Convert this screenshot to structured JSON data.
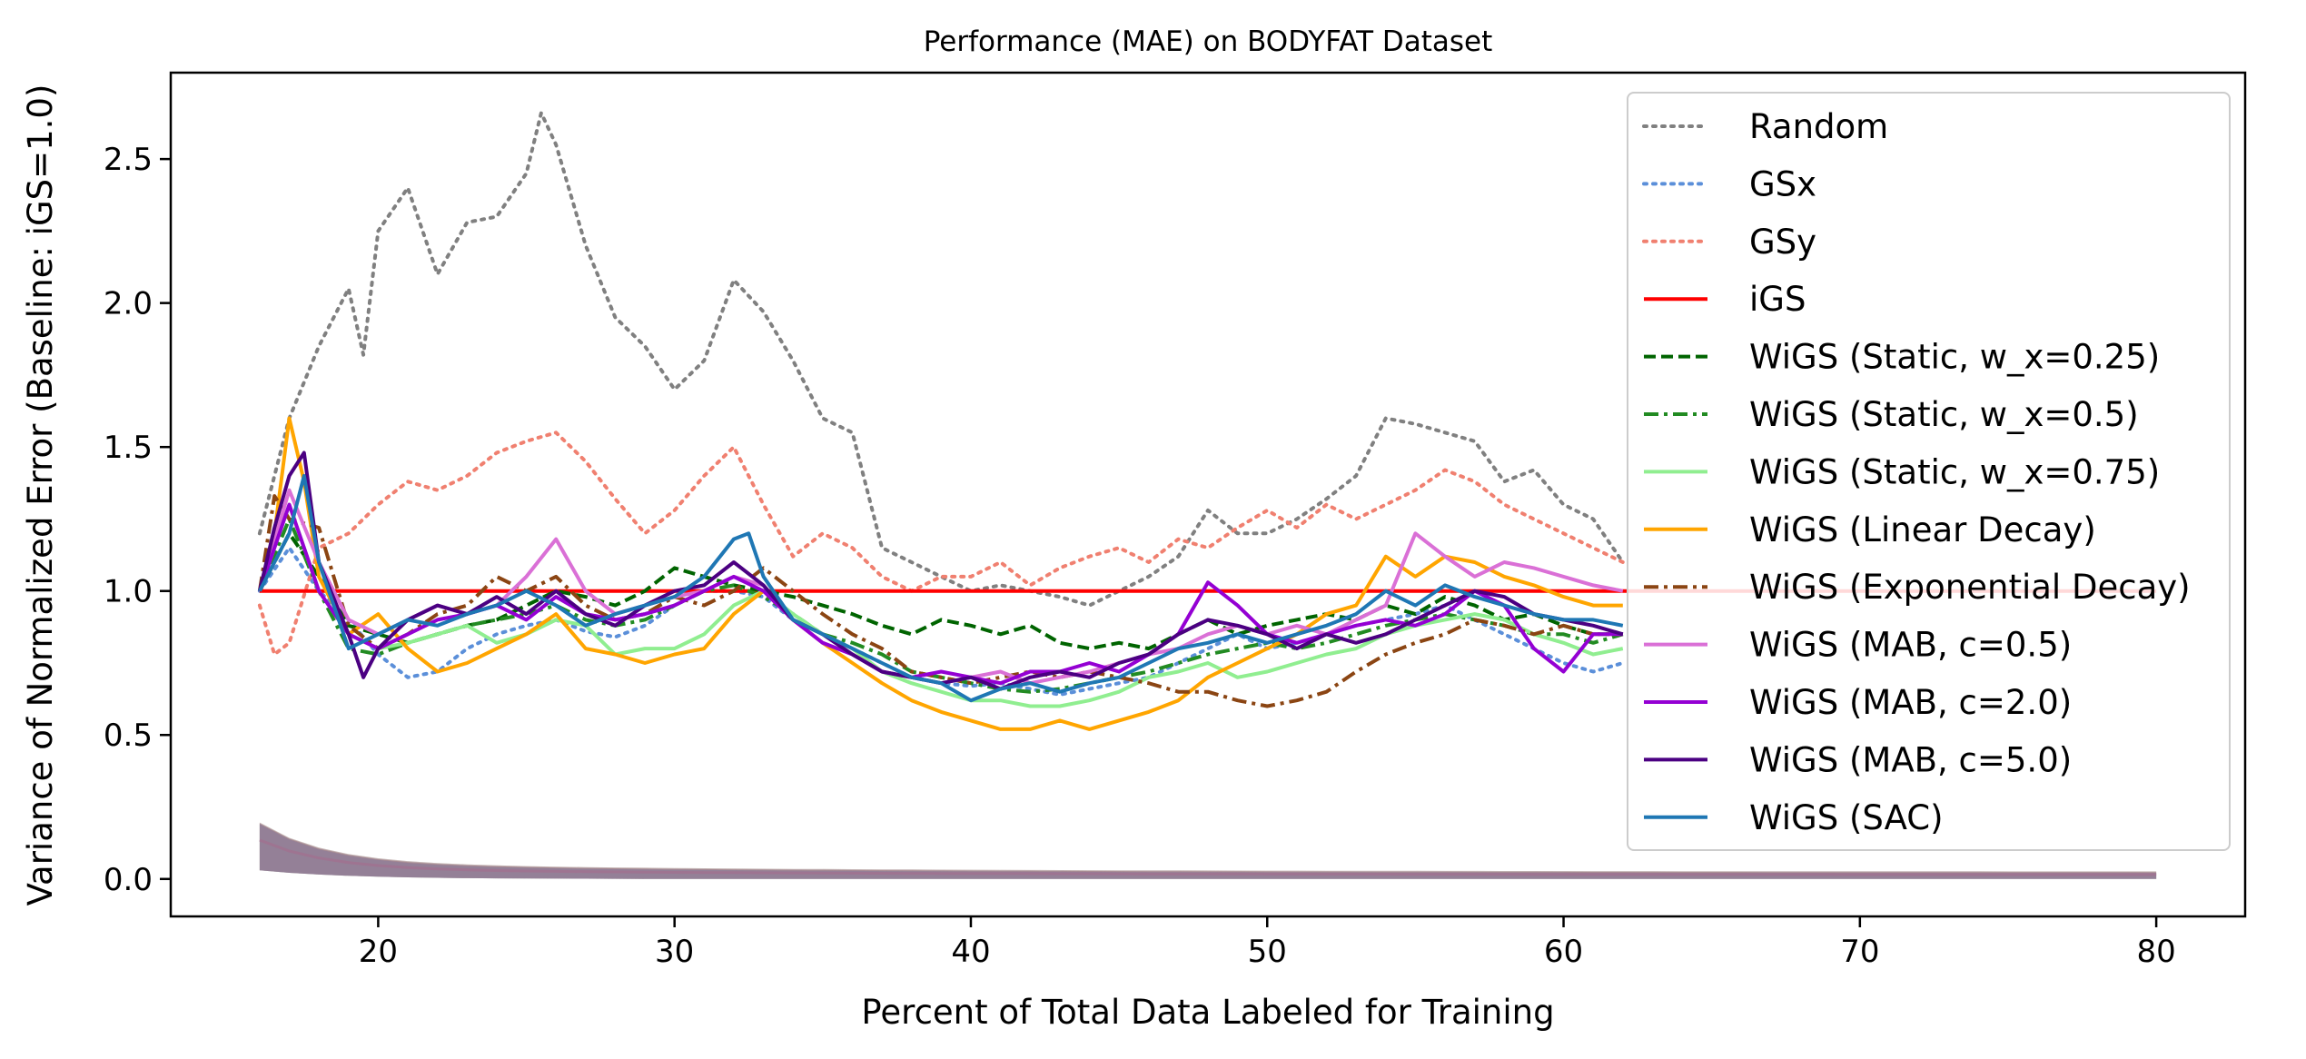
{
  "chart_data": {
    "type": "line",
    "title": "Performance (MAE) on BODYFAT Dataset",
    "xlabel": "Percent of Total Data Labeled for Training",
    "ylabel": "Variance of Normalized Error (Baseline: iGS=1.0)",
    "xlim": [
      13,
      83
    ],
    "ylim": [
      -0.13,
      2.8
    ],
    "xticks": [
      20,
      30,
      40,
      50,
      60,
      70,
      80
    ],
    "yticks": [
      0.0,
      0.5,
      1.0,
      1.5,
      2.0,
      2.5
    ],
    "xtick_labels": [
      "20",
      "30",
      "40",
      "50",
      "60",
      "70",
      "80"
    ],
    "ytick_labels": [
      "0.0",
      "0.5",
      "1.0",
      "1.5",
      "2.0",
      "2.5"
    ],
    "grid": false,
    "legend_position": "upper-right",
    "series": [
      {
        "name": "Random",
        "color": "#808080",
        "dash": "dotted",
        "x": [
          16,
          17,
          18,
          19,
          19.5,
          20,
          21,
          22,
          23,
          24,
          25,
          25.5,
          26,
          27,
          28,
          29,
          30,
          31,
          32,
          33,
          34,
          35,
          36,
          37,
          38,
          39,
          40,
          41,
          42,
          43,
          44,
          45,
          46,
          47,
          48,
          49,
          50,
          51,
          52,
          53,
          54,
          55,
          56,
          57,
          58,
          59,
          60,
          61,
          62
        ],
        "y": [
          1.2,
          1.6,
          1.85,
          2.05,
          1.82,
          2.25,
          2.4,
          2.1,
          2.28,
          2.3,
          2.45,
          2.66,
          2.55,
          2.2,
          1.95,
          1.85,
          1.7,
          1.8,
          2.08,
          1.97,
          1.8,
          1.6,
          1.55,
          1.15,
          1.1,
          1.05,
          1.0,
          1.02,
          1.0,
          0.98,
          0.95,
          1.0,
          1.05,
          1.12,
          1.28,
          1.2,
          1.2,
          1.25,
          1.32,
          1.4,
          1.6,
          1.58,
          1.55,
          1.52,
          1.38,
          1.42,
          1.3,
          1.25,
          1.1
        ]
      },
      {
        "name": "GSx",
        "color": "#5b8fd9",
        "dash": "dotted",
        "x": [
          16,
          17,
          18,
          19,
          20,
          21,
          22,
          23,
          24,
          25,
          26,
          27,
          28,
          29,
          30,
          31,
          32,
          33,
          34,
          35,
          36,
          37,
          38,
          39,
          40,
          41,
          42,
          43,
          44,
          45,
          46,
          47,
          48,
          49,
          50,
          51,
          52,
          53,
          54,
          55,
          56,
          57,
          58,
          59,
          60,
          61,
          62
        ],
        "y": [
          1.0,
          1.15,
          1.0,
          0.9,
          0.78,
          0.7,
          0.72,
          0.8,
          0.85,
          0.88,
          0.9,
          0.86,
          0.84,
          0.88,
          0.95,
          1.0,
          1.0,
          0.98,
          0.9,
          0.85,
          0.8,
          0.75,
          0.7,
          0.68,
          0.67,
          0.68,
          0.66,
          0.64,
          0.66,
          0.68,
          0.7,
          0.75,
          0.8,
          0.85,
          0.8,
          0.82,
          0.85,
          0.88,
          0.9,
          0.92,
          0.95,
          0.9,
          0.85,
          0.8,
          0.75,
          0.72,
          0.75
        ]
      },
      {
        "name": "GSy",
        "color": "#f08070",
        "dash": "dotted",
        "x": [
          16,
          16.5,
          17,
          18,
          19,
          20,
          21,
          22,
          23,
          24,
          25,
          26,
          27,
          28,
          29,
          30,
          31,
          32,
          33,
          34,
          35,
          36,
          37,
          38,
          39,
          40,
          41,
          42,
          43,
          44,
          45,
          46,
          47,
          48,
          49,
          50,
          51,
          52,
          53,
          54,
          55,
          56,
          57,
          58,
          59,
          60,
          61,
          62
        ],
        "y": [
          0.95,
          0.78,
          0.82,
          1.15,
          1.2,
          1.3,
          1.38,
          1.35,
          1.4,
          1.48,
          1.52,
          1.55,
          1.45,
          1.32,
          1.2,
          1.28,
          1.4,
          1.5,
          1.3,
          1.12,
          1.2,
          1.15,
          1.05,
          1.0,
          1.05,
          1.05,
          1.1,
          1.02,
          1.08,
          1.12,
          1.15,
          1.1,
          1.18,
          1.15,
          1.22,
          1.28,
          1.22,
          1.3,
          1.25,
          1.3,
          1.35,
          1.42,
          1.38,
          1.3,
          1.25,
          1.2,
          1.15,
          1.1
        ]
      },
      {
        "name": "iGS",
        "color": "#ff0000",
        "dash": "solid",
        "x": [
          16,
          80
        ],
        "y": [
          1.0,
          1.0
        ]
      },
      {
        "name": "WiGS (Static, w_x=0.25)",
        "color": "#006400",
        "dash": "dashed",
        "x": [
          16,
          17,
          18,
          19,
          20,
          21,
          22,
          23,
          24,
          25,
          26,
          27,
          28,
          29,
          30,
          31,
          32,
          33,
          34,
          35,
          36,
          37,
          38,
          39,
          40,
          41,
          42,
          43,
          44,
          45,
          46,
          47,
          48,
          49,
          50,
          51,
          52,
          53,
          54,
          55,
          56,
          57,
          58,
          59,
          60,
          61,
          62
        ],
        "y": [
          1.0,
          1.2,
          1.05,
          0.88,
          0.85,
          0.82,
          0.85,
          0.88,
          0.9,
          0.95,
          1.0,
          0.98,
          0.95,
          1.0,
          1.08,
          1.05,
          1.02,
          1.0,
          0.98,
          0.95,
          0.92,
          0.88,
          0.85,
          0.9,
          0.88,
          0.85,
          0.88,
          0.82,
          0.8,
          0.82,
          0.8,
          0.85,
          0.9,
          0.85,
          0.88,
          0.9,
          0.92,
          0.9,
          0.95,
          0.92,
          0.98,
          0.95,
          0.9,
          0.92,
          0.88,
          0.85,
          0.85
        ]
      },
      {
        "name": "WiGS (Static, w_x=0.5)",
        "color": "#228b22",
        "dash": "dashdot",
        "x": [
          16,
          17,
          18,
          19,
          20,
          21,
          22,
          23,
          24,
          25,
          26,
          27,
          28,
          29,
          30,
          31,
          32,
          33,
          34,
          35,
          36,
          37,
          38,
          39,
          40,
          41,
          42,
          43,
          44,
          45,
          46,
          47,
          48,
          49,
          50,
          51,
          52,
          53,
          54,
          55,
          56,
          57,
          58,
          59,
          60,
          61,
          62
        ],
        "y": [
          1.0,
          1.25,
          1.0,
          0.8,
          0.78,
          0.82,
          0.85,
          0.88,
          0.9,
          0.92,
          0.95,
          0.9,
          0.88,
          0.9,
          0.95,
          1.0,
          1.02,
          0.98,
          0.92,
          0.85,
          0.82,
          0.78,
          0.72,
          0.7,
          0.68,
          0.66,
          0.65,
          0.66,
          0.68,
          0.7,
          0.72,
          0.75,
          0.78,
          0.8,
          0.82,
          0.8,
          0.82,
          0.85,
          0.88,
          0.9,
          0.92,
          0.9,
          0.88,
          0.85,
          0.85,
          0.82,
          0.85
        ]
      },
      {
        "name": "WiGS (Static, w_x=0.75)",
        "color": "#90ee90",
        "dash": "solid",
        "x": [
          16,
          17,
          18,
          19,
          20,
          21,
          22,
          23,
          24,
          25,
          26,
          27,
          28,
          29,
          30,
          31,
          32,
          33,
          34,
          35,
          36,
          37,
          38,
          39,
          40,
          41,
          42,
          43,
          44,
          45,
          46,
          47,
          48,
          49,
          50,
          51,
          52,
          53,
          54,
          55,
          56,
          57,
          58,
          59,
          60,
          61,
          62
        ],
        "y": [
          1.0,
          1.3,
          1.0,
          0.85,
          0.8,
          0.82,
          0.85,
          0.88,
          0.82,
          0.85,
          0.9,
          0.88,
          0.78,
          0.8,
          0.8,
          0.85,
          0.95,
          1.0,
          0.92,
          0.85,
          0.8,
          0.72,
          0.68,
          0.65,
          0.62,
          0.62,
          0.6,
          0.6,
          0.62,
          0.65,
          0.7,
          0.72,
          0.75,
          0.7,
          0.72,
          0.75,
          0.78,
          0.8,
          0.85,
          0.88,
          0.9,
          0.92,
          0.9,
          0.85,
          0.82,
          0.78,
          0.8
        ]
      },
      {
        "name": "WiGS (Linear Decay)",
        "color": "#ffa500",
        "dash": "solid",
        "x": [
          16,
          16.5,
          17,
          17.5,
          18,
          19,
          20,
          21,
          22,
          23,
          24,
          25,
          26,
          27,
          28,
          29,
          30,
          31,
          32,
          33,
          34,
          35,
          36,
          37,
          38,
          39,
          40,
          41,
          42,
          43,
          44,
          45,
          46,
          47,
          48,
          49,
          50,
          51,
          52,
          53,
          54,
          55,
          56,
          57,
          58,
          59,
          60,
          61,
          62
        ],
        "y": [
          1.0,
          1.2,
          1.6,
          1.38,
          1.05,
          0.85,
          0.92,
          0.8,
          0.72,
          0.75,
          0.8,
          0.85,
          0.92,
          0.8,
          0.78,
          0.75,
          0.78,
          0.8,
          0.92,
          1.0,
          0.9,
          0.82,
          0.75,
          0.68,
          0.62,
          0.58,
          0.55,
          0.52,
          0.52,
          0.55,
          0.52,
          0.55,
          0.58,
          0.62,
          0.7,
          0.75,
          0.8,
          0.85,
          0.92,
          0.95,
          1.12,
          1.05,
          1.12,
          1.1,
          1.05,
          1.02,
          0.98,
          0.95,
          0.95
        ]
      },
      {
        "name": "WiGS (Exponential Decay)",
        "color": "#8b4513",
        "dash": "dashdot",
        "x": [
          16,
          16.5,
          17,
          18,
          19,
          20,
          21,
          22,
          23,
          24,
          25,
          26,
          27,
          28,
          29,
          30,
          31,
          32,
          33,
          34,
          35,
          36,
          37,
          38,
          39,
          40,
          41,
          42,
          43,
          44,
          45,
          46,
          47,
          48,
          49,
          50,
          51,
          52,
          53,
          54,
          55,
          56,
          57,
          58,
          59,
          60,
          61,
          62
        ],
        "y": [
          1.0,
          1.33,
          1.25,
          1.22,
          0.88,
          0.8,
          0.85,
          0.92,
          0.95,
          1.05,
          1.0,
          1.05,
          0.95,
          0.9,
          0.92,
          0.98,
          0.95,
          1.0,
          1.08,
          1.0,
          0.92,
          0.85,
          0.8,
          0.72,
          0.7,
          0.68,
          0.7,
          0.72,
          0.7,
          0.72,
          0.7,
          0.68,
          0.65,
          0.65,
          0.62,
          0.6,
          0.62,
          0.65,
          0.72,
          0.78,
          0.82,
          0.85,
          0.9,
          0.88,
          0.85,
          0.88,
          0.85,
          0.85
        ]
      },
      {
        "name": "WiGS (MAB, c=0.5)",
        "color": "#da70d6",
        "dash": "solid",
        "x": [
          16,
          17,
          18,
          19,
          20,
          21,
          22,
          23,
          24,
          25,
          26,
          27,
          28,
          29,
          30,
          31,
          32,
          33,
          34,
          35,
          36,
          37,
          38,
          39,
          40,
          41,
          42,
          43,
          44,
          45,
          46,
          47,
          48,
          49,
          50,
          51,
          52,
          53,
          54,
          55,
          56,
          57,
          58,
          59,
          60,
          61,
          62
        ],
        "y": [
          1.0,
          1.35,
          1.1,
          0.9,
          0.85,
          0.9,
          0.95,
          0.92,
          0.95,
          1.05,
          1.18,
          1.0,
          0.92,
          0.95,
          0.98,
          1.0,
          1.05,
          1.02,
          0.9,
          0.82,
          0.78,
          0.72,
          0.7,
          0.68,
          0.7,
          0.72,
          0.68,
          0.7,
          0.72,
          0.75,
          0.78,
          0.8,
          0.85,
          0.88,
          0.85,
          0.88,
          0.85,
          0.9,
          0.95,
          1.2,
          1.12,
          1.05,
          1.1,
          1.08,
          1.05,
          1.02,
          1.0
        ]
      },
      {
        "name": "WiGS (MAB, c=2.0)",
        "color": "#9400d3",
        "dash": "solid",
        "x": [
          16,
          17,
          18,
          19,
          20,
          21,
          22,
          23,
          24,
          25,
          26,
          27,
          28,
          29,
          30,
          31,
          32,
          33,
          34,
          35,
          36,
          37,
          38,
          39,
          40,
          41,
          42,
          43,
          44,
          45,
          46,
          47,
          48,
          49,
          50,
          51,
          52,
          53,
          54,
          55,
          56,
          57,
          58,
          59,
          60,
          61,
          62
        ],
        "y": [
          1.0,
          1.3,
          1.0,
          0.85,
          0.8,
          0.85,
          0.9,
          0.92,
          0.95,
          0.9,
          0.98,
          0.92,
          0.9,
          0.92,
          0.95,
          1.0,
          1.05,
          1.0,
          0.9,
          0.82,
          0.78,
          0.72,
          0.7,
          0.72,
          0.7,
          0.68,
          0.72,
          0.72,
          0.75,
          0.72,
          0.78,
          0.85,
          1.03,
          0.95,
          0.85,
          0.82,
          0.85,
          0.88,
          0.9,
          0.88,
          0.92,
          1.0,
          0.95,
          0.8,
          0.72,
          0.85,
          0.85
        ]
      },
      {
        "name": "WiGS (MAB, c=5.0)",
        "color": "#4b0082",
        "dash": "solid",
        "x": [
          16,
          16.5,
          17,
          17.5,
          18,
          19,
          19.5,
          20,
          21,
          22,
          23,
          24,
          25,
          26,
          27,
          28,
          29,
          30,
          31,
          32,
          33,
          34,
          35,
          36,
          37,
          38,
          39,
          40,
          41,
          42,
          43,
          44,
          45,
          46,
          47,
          48,
          49,
          50,
          51,
          52,
          53,
          54,
          55,
          56,
          57,
          58,
          59,
          60,
          61,
          62
        ],
        "y": [
          1.0,
          1.22,
          1.4,
          1.48,
          1.1,
          0.85,
          0.7,
          0.8,
          0.9,
          0.95,
          0.92,
          0.98,
          0.92,
          1.0,
          0.92,
          0.88,
          0.95,
          1.0,
          1.02,
          1.1,
          1.02,
          0.9,
          0.85,
          0.78,
          0.72,
          0.7,
          0.68,
          0.7,
          0.66,
          0.7,
          0.72,
          0.7,
          0.75,
          0.78,
          0.85,
          0.9,
          0.88,
          0.85,
          0.8,
          0.85,
          0.82,
          0.85,
          0.9,
          0.95,
          1.0,
          0.98,
          0.92,
          0.9,
          0.88,
          0.85
        ]
      },
      {
        "name": "WiGS (SAC)",
        "color": "#1f77b4",
        "dash": "solid",
        "x": [
          16,
          17,
          17.5,
          18,
          19,
          20,
          21,
          22,
          23,
          24,
          25,
          26,
          27,
          28,
          29,
          30,
          31,
          32,
          32.5,
          33,
          34,
          35,
          36,
          37,
          38,
          39,
          40,
          41,
          42,
          43,
          44,
          45,
          46,
          47,
          48,
          49,
          50,
          51,
          52,
          53,
          54,
          55,
          56,
          57,
          58,
          59,
          60,
          61,
          62
        ],
        "y": [
          1.0,
          1.2,
          1.4,
          1.1,
          0.8,
          0.85,
          0.9,
          0.88,
          0.92,
          0.95,
          1.0,
          0.95,
          0.88,
          0.92,
          0.95,
          0.98,
          1.05,
          1.18,
          1.2,
          1.05,
          0.9,
          0.85,
          0.8,
          0.75,
          0.7,
          0.68,
          0.62,
          0.66,
          0.68,
          0.65,
          0.68,
          0.7,
          0.75,
          0.8,
          0.82,
          0.85,
          0.82,
          0.85,
          0.88,
          0.92,
          1.0,
          0.95,
          1.02,
          0.98,
          0.95,
          0.92,
          0.9,
          0.9,
          0.88
        ]
      }
    ]
  }
}
